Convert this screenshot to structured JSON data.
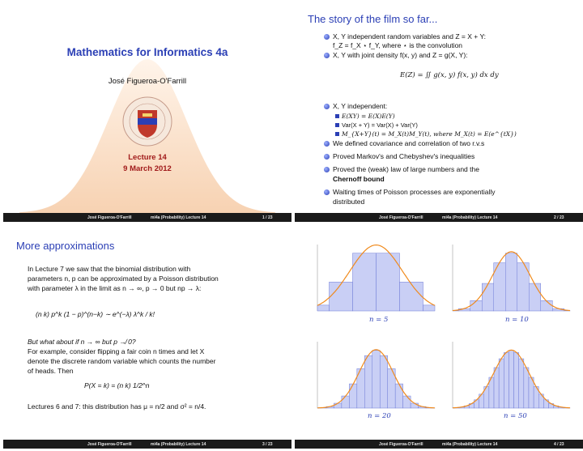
{
  "footer": {
    "author": "José Figueroa-O'Farrill",
    "course": "mi4a (Probability) Lecture 14",
    "pages": [
      "1 / 23",
      "2 / 23",
      "3 / 23",
      "4 / 23"
    ]
  },
  "slide1": {
    "title": "Mathematics for Informatics 4a",
    "author": "José Figueroa-O'Farrill",
    "lecture": "Lecture 14",
    "date": "9 March 2012"
  },
  "slide2": {
    "title": "The story of the film so far...",
    "b1a": "X, Y independent random variables and Z = X + Y:",
    "b1b": "f_Z = f_X ⋆ f_Y, where ⋆ is the convolution",
    "b2a": "X, Y with joint density f(x, y) and Z = g(X, Y):",
    "b2eq": "E(Z) = ∬ g(x, y) f(x, y) dx dy",
    "b3": "X, Y independent:",
    "s1": "E(XY) = E(X)E(Y)",
    "s2": "Var(X + Y) = Var(X) + Var(Y)",
    "s3": "M_{X+Y}(t) = M_X(t)M_Y(t), where M_X(t) = E(e^{tX})",
    "b4": "We defined covariance and correlation of two r.v.s",
    "b5": "Proved Markov's and Chebyshev's inequalities",
    "b6a": "Proved the (weak) law of large numbers and the",
    "b6b": "Chernoff bound",
    "b7a": "Waiting times of Poisson processes are exponentially",
    "b7b": "distributed"
  },
  "slide3": {
    "title": "More approximations",
    "p1": "In Lecture 7 we saw that the binomial distribution with",
    "p2": "parameters n, p can be approximated by a Poisson distribution",
    "p3": "with parameter λ in the limit as n → ∞, p → 0 but np → λ:",
    "eq1": "(n k) p^k (1 − p)^(n−k) ∼ e^(−λ) λ^k / k!",
    "q": "But what about if n → ∞ but p ↛ 0?",
    "p4": "For example, consider flipping a fair coin n times and let X",
    "p5": "denote the discrete random variable which counts the number",
    "p6": "of heads. Then",
    "eq2": "P(X = k) = (n k) 1/2^n",
    "p7": "Lectures 6 and 7: this distribution has μ = n/2 and σ² = n/4."
  },
  "slide4": {
    "panels": [
      {
        "label": "n = 5",
        "n": 5
      },
      {
        "label": "n = 10",
        "n": 10
      },
      {
        "label": "n = 20",
        "n": 20
      },
      {
        "label": "n = 50",
        "n": 50
      }
    ]
  },
  "colors": {
    "blue": "#2b3fb5",
    "bar_fill": "#c9cff5",
    "curve": "#f08a1c",
    "bell": "#fbe3cf",
    "lecture": "#a11b1b"
  }
}
